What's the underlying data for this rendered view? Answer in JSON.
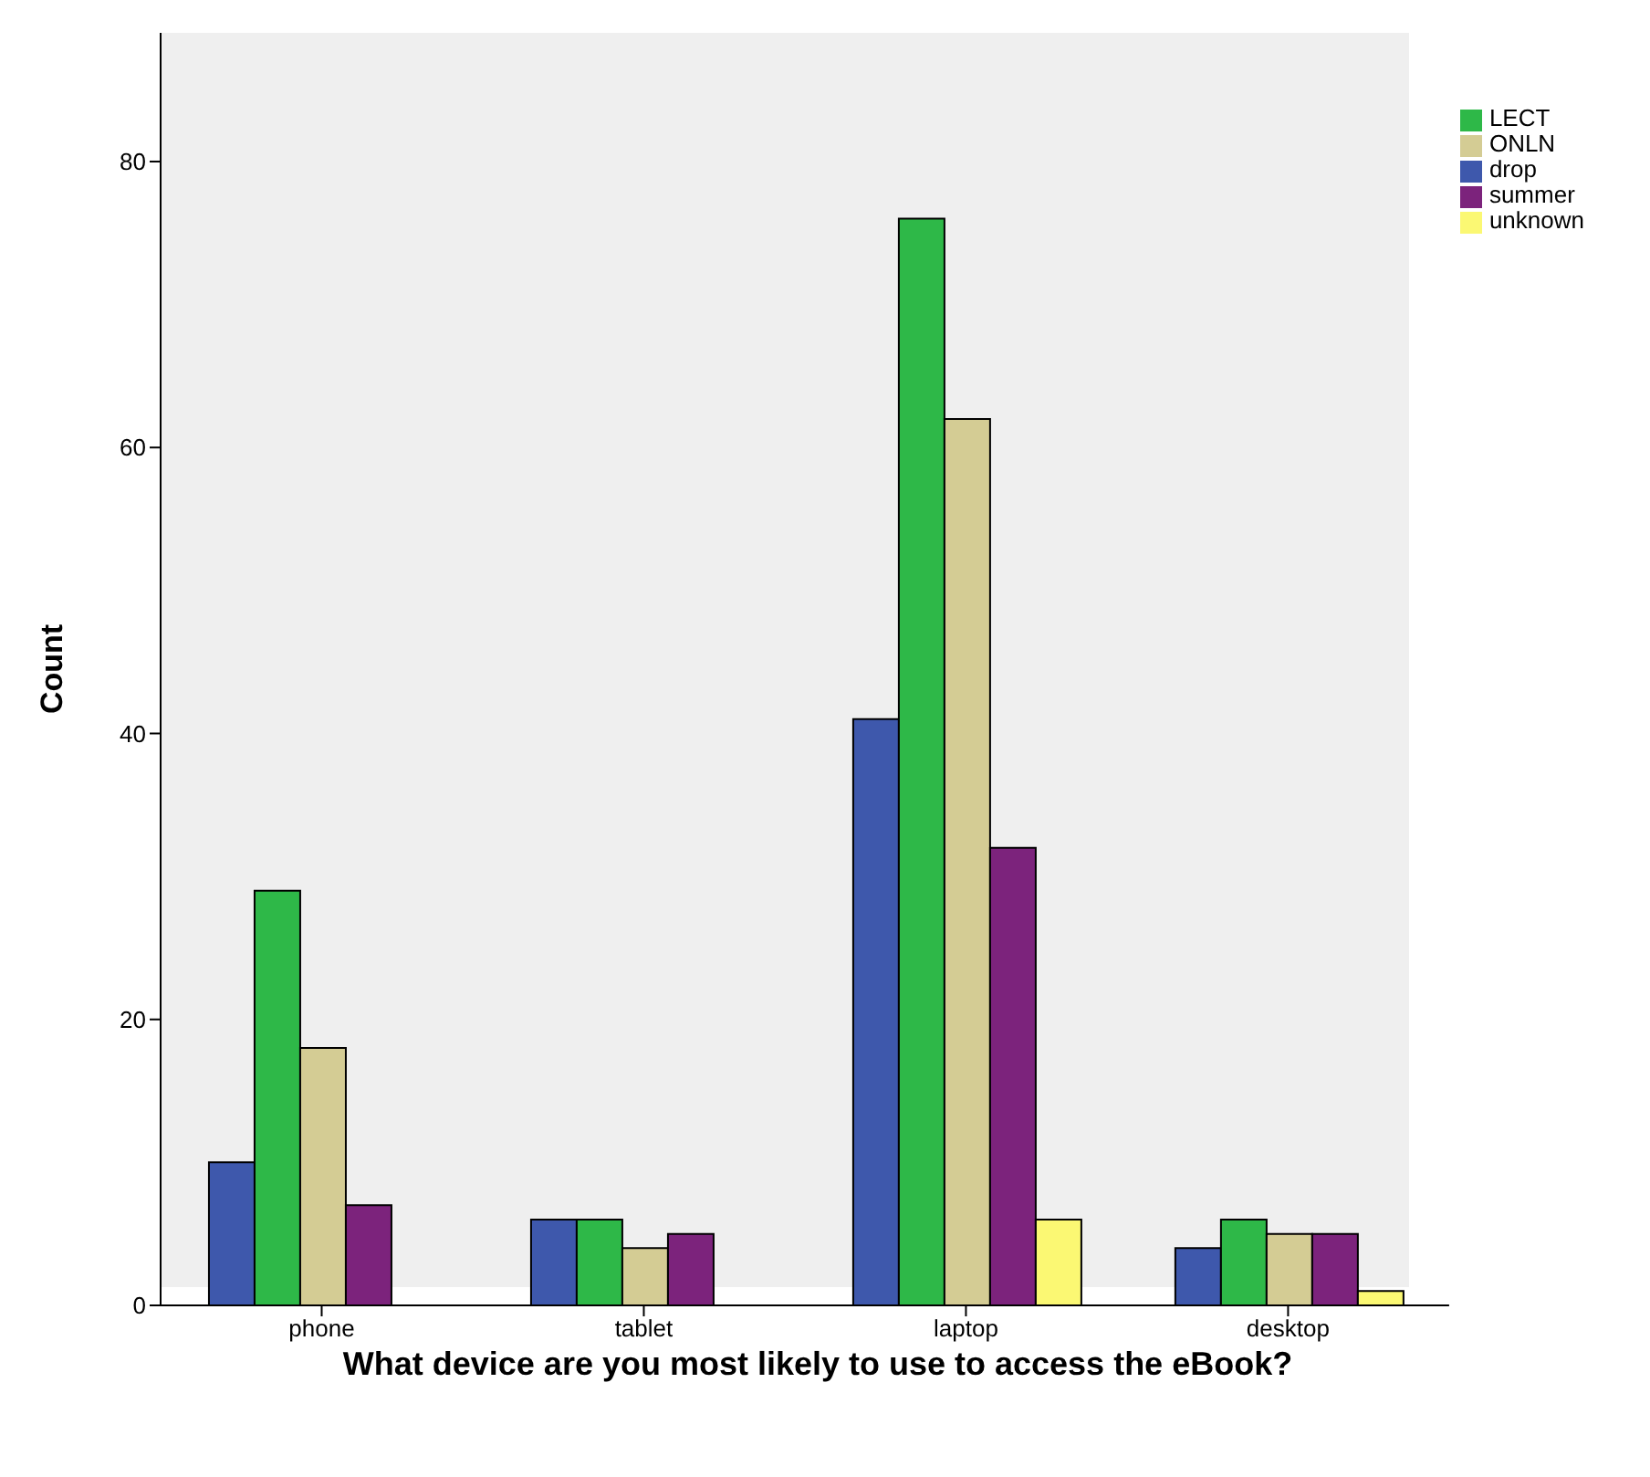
{
  "chart_data": {
    "type": "bar",
    "xlabel": "What device are you most likely to use to access the eBook?",
    "ylabel": "Count",
    "categories": [
      "phone",
      "tablet",
      "laptop",
      "desktop"
    ],
    "series": [
      {
        "name": "drop",
        "color": "#3e58ac",
        "values": [
          10,
          6,
          41,
          4
        ]
      },
      {
        "name": "LECT",
        "color": "#2eb848",
        "values": [
          29,
          6,
          76,
          6
        ]
      },
      {
        "name": "ONLN",
        "color": "#d4cc94",
        "values": [
          18,
          4,
          62,
          5
        ]
      },
      {
        "name": "summer",
        "color": "#7c237c",
        "values": [
          7,
          5,
          32,
          5
        ]
      },
      {
        "name": "unknown",
        "color": "#fbf873",
        "values": [
          null,
          null,
          6,
          1
        ]
      }
    ],
    "ylim": [
      0,
      89
    ],
    "yticks": [
      0,
      20,
      40,
      60,
      80
    ],
    "grid": false,
    "legend": "top right"
  }
}
